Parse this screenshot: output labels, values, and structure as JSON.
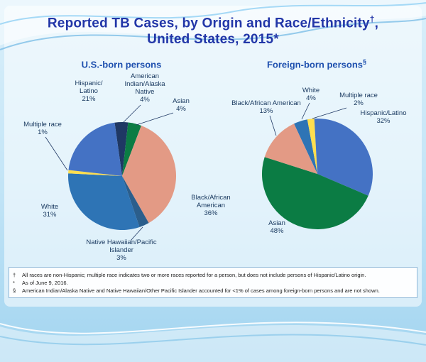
{
  "slide": {
    "title_line1": "Reported TB Cases, by Origin and Race/Ethnicity",
    "title_line1_sup": "†",
    "title_line1_tail": ",",
    "title_line2": "United States, 2015*"
  },
  "footnotes": [
    {
      "marker": "†",
      "text": "All races are non-Hispanic;  multiple race indicates two or more races reported for a person, but does not include persons of Hispanic/Latino origin."
    },
    {
      "marker": "*",
      "text": "As of June 9, 2016."
    },
    {
      "marker": "§",
      "text": "American Indian/Alaska Native and Native Hawaiian/Other Pacific Islander accounted for <1% of cases among foreign-born persons and are not shown."
    }
  ],
  "colors": {
    "title_blue": "#2236A8",
    "chart_title_blue": "#1D4FAE",
    "label_navy": "#17375E"
  },
  "chart_data": [
    {
      "type": "pie",
      "title": "U.S.-born persons",
      "title_sup": "",
      "unit": "%",
      "center": [
        164,
        150
      ],
      "radius": 76,
      "start_angle": -8,
      "slices": [
        {
          "name": "American Indian/Alaska Native",
          "pct": 4,
          "color": "#1F3864",
          "label_lines": [
            "American",
            "Indian/Alaska",
            "Native",
            "4%"
          ],
          "label": [
            196,
            12
          ],
          "anchor": "middle",
          "leader": [
            190,
            50,
            164,
            76
          ]
        },
        {
          "name": "Asian",
          "pct": 4,
          "color": "#0B7C44",
          "label_lines": [
            "Asian",
            "4%"
          ],
          "label": [
            247,
            47
          ],
          "anchor": "middle",
          "leader": [
            236,
            61,
            184,
            78
          ]
        },
        {
          "name": "Black/African American",
          "pct": 36,
          "color": "#E39A85",
          "label_lines": [
            "Black/African",
            "American",
            "36%"
          ],
          "label": [
            289,
            183
          ],
          "anchor": "middle",
          "leader": null
        },
        {
          "name": "Native Hawaiian/Pacific Islander",
          "pct": 3,
          "color": "#2B5E8C",
          "label_lines": [
            "Native Hawaiian/Pacific",
            "Islander",
            "3%"
          ],
          "label": [
            163,
            246
          ],
          "anchor": "middle",
          "leader": [
            176,
            241,
            193,
            222
          ]
        },
        {
          "name": "White",
          "pct": 31,
          "color": "#2E74B5",
          "label_lines": [
            "White",
            "31%"
          ],
          "label": [
            62,
            196
          ],
          "anchor": "middle",
          "leader": null
        },
        {
          "name": "Multiple race",
          "pct": 1,
          "color": "#FFDE4E",
          "label_lines": [
            "Multiple race",
            "1%"
          ],
          "label": [
            52,
            80
          ],
          "anchor": "middle",
          "leader": [
            56,
            95,
            87,
            142
          ]
        },
        {
          "name": "Hispanic/Latino",
          "pct": 21,
          "color": "#4472C4",
          "label_lines": [
            "Hispanic/",
            "Latino",
            "21%"
          ],
          "label": [
            117,
            22
          ],
          "anchor": "middle",
          "leader": null
        }
      ]
    },
    {
      "type": "pie",
      "title": "Foreign-born persons",
      "title_sup": "§",
      "unit": "%",
      "center": [
        439,
        147
      ],
      "radius": 78,
      "start_angle": -25,
      "slices": [
        {
          "name": "White",
          "pct": 4,
          "color": "#2E74B5",
          "label_lines": [
            "White",
            "4%"
          ],
          "label": [
            430,
            32
          ],
          "anchor": "middle",
          "leader": [
            428,
            47,
            417,
            70
          ]
        },
        {
          "name": "Multiple race",
          "pct": 2,
          "color": "#FFDE4E",
          "label_lines": [
            "Multiple race",
            "2%"
          ],
          "label": [
            497,
            39
          ],
          "anchor": "middle",
          "leader": [
            480,
            54,
            432,
            69
          ]
        },
        {
          "name": "Hispanic/Latino",
          "pct": 32,
          "color": "#4472C4",
          "label_lines": [
            "Hispanic/Latino",
            "32%"
          ],
          "label": [
            532,
            64
          ],
          "anchor": "middle",
          "leader": null
        },
        {
          "name": "Asian",
          "pct": 48,
          "color": "#0B7C44",
          "label_lines": [
            "Asian",
            "48%"
          ],
          "label": [
            382,
            219
          ],
          "anchor": "middle",
          "leader": null
        },
        {
          "name": "Black/African American",
          "pct": 13,
          "color": "#E39A85",
          "label_lines": [
            "Black/African American",
            "13%"
          ],
          "label": [
            367,
            50
          ],
          "anchor": "middle",
          "leader": [
            372,
            65,
            381,
            93
          ]
        }
      ]
    }
  ]
}
